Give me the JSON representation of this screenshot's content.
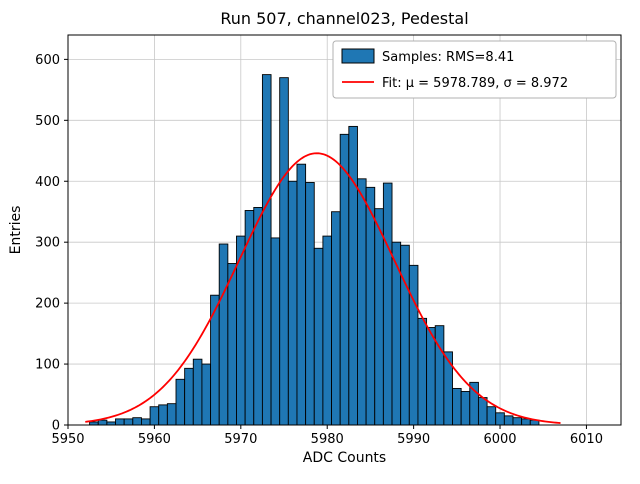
{
  "figure": {
    "title": "Run 507, channel023, Pedestal"
  },
  "colors": {
    "bar_fill": "#1f77b4",
    "bar_edge": "#000000",
    "fit_line": "#ff0000",
    "grid": "#c8c8c8",
    "frame": "#000000",
    "legend_edge": "#b0b0b0",
    "background": "#ffffff"
  },
  "chart_data": {
    "type": "bar",
    "title": "Run 507, channel023, Pedestal",
    "xlabel": "ADC Counts",
    "ylabel": "Entries",
    "xlim": [
      5950,
      6014
    ],
    "ylim": [
      0,
      640
    ],
    "xticks": [
      5950,
      5960,
      5970,
      5980,
      5990,
      6000,
      6010
    ],
    "yticks": [
      0,
      100,
      200,
      300,
      400,
      500,
      600
    ],
    "grid": true,
    "legend_position": "upper right",
    "bin_width": 1,
    "bin_start": 5953,
    "categories": [
      5953,
      5954,
      5955,
      5956,
      5957,
      5958,
      5959,
      5960,
      5961,
      5962,
      5963,
      5964,
      5965,
      5966,
      5967,
      5968,
      5969,
      5970,
      5971,
      5972,
      5973,
      5974,
      5975,
      5976,
      5977,
      5978,
      5979,
      5980,
      5981,
      5982,
      5983,
      5984,
      5985,
      5986,
      5987,
      5988,
      5989,
      5990,
      5991,
      5992,
      5993,
      5994,
      5995,
      5996,
      5997,
      5998,
      5999,
      6000,
      6001,
      6002,
      6003,
      6004
    ],
    "values": [
      5,
      8,
      5,
      10,
      10,
      12,
      10,
      30,
      33,
      35,
      75,
      93,
      108,
      100,
      213,
      297,
      265,
      310,
      352,
      357,
      575,
      307,
      570,
      400,
      428,
      398,
      290,
      310,
      350,
      477,
      490,
      404,
      390,
      355,
      397,
      300,
      295,
      262,
      175,
      160,
      163,
      120,
      60,
      55,
      70,
      45,
      30,
      20,
      15,
      12,
      10,
      8
    ],
    "fit": {
      "mu": 5978.789,
      "sigma": 8.972,
      "amplitude": 446,
      "x_start": 5952,
      "x_end": 6007
    },
    "legend": [
      {
        "label": "Samples: RMS=8.41",
        "type": "patch"
      },
      {
        "label": "Fit: μ = 5978.789, σ = 8.972",
        "type": "line"
      }
    ]
  }
}
